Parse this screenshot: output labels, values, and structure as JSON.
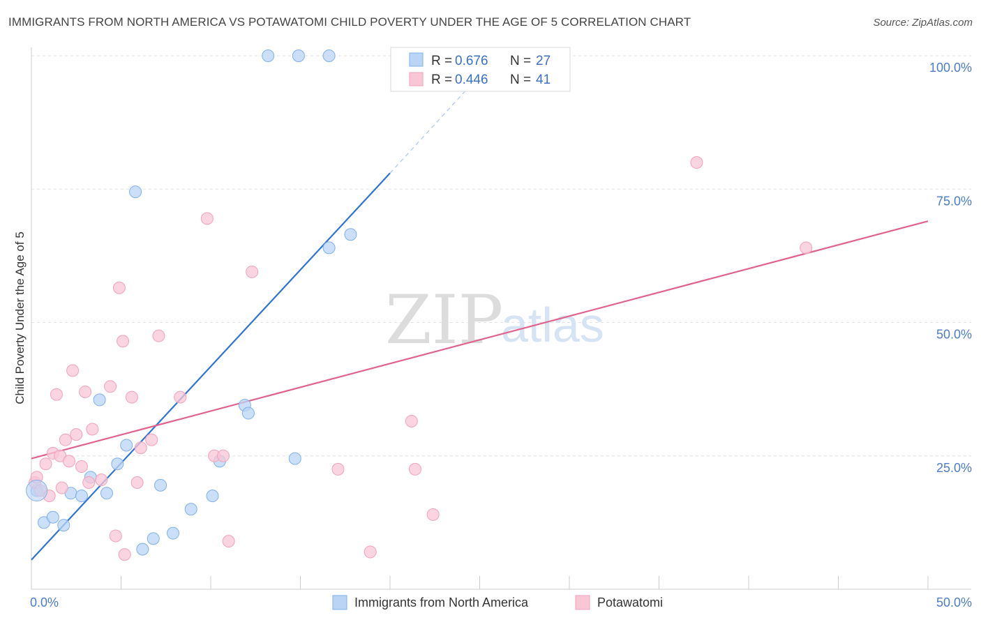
{
  "title": "IMMIGRANTS FROM NORTH AMERICA VS POTAWATOMI CHILD POVERTY UNDER THE AGE OF 5 CORRELATION CHART",
  "source": "Source: ZipAtlas.com",
  "watermark": {
    "zip": "ZIP",
    "atlas": "atlas"
  },
  "chart_data": {
    "type": "scatter",
    "xlabel": "",
    "ylabel": "Child Poverty Under the Age of 5",
    "xlim": [
      0,
      50
    ],
    "ylim": [
      0,
      100
    ],
    "x_tick_labels": [
      {
        "value": 0,
        "label": "0.0%"
      },
      {
        "value": 50,
        "label": "50.0%"
      }
    ],
    "y_tick_labels": [
      {
        "value": 25,
        "label": "25.0%"
      },
      {
        "value": 50,
        "label": "50.0%"
      },
      {
        "value": 75,
        "label": "75.0%"
      },
      {
        "value": 100,
        "label": "100.0%"
      }
    ],
    "grid": true,
    "legend": {
      "position": "top-center",
      "entries": [
        {
          "r_label": "R = ",
          "r_value": "0.676",
          "n_label": "N = ",
          "n_value": "27"
        },
        {
          "r_label": "R = ",
          "r_value": "0.446",
          "n_label": "N = ",
          "n_value": "41"
        }
      ]
    },
    "series": [
      {
        "name": "Immigrants from North America",
        "color": "#7fb0ea",
        "fill": "#b9d4f5",
        "line_color": "#2f73d4",
        "trend": {
          "x0": 0,
          "y0": 5.5,
          "x1": 20,
          "y1": 78,
          "dash_to_x": 26,
          "dash_to_y": 100
        },
        "points": [
          [
            0.3,
            18.5
          ],
          [
            0.7,
            12.5
          ],
          [
            1.2,
            13.5
          ],
          [
            1.8,
            12.0
          ],
          [
            2.2,
            18.0
          ],
          [
            2.8,
            17.5
          ],
          [
            3.3,
            21.0
          ],
          [
            3.8,
            35.5
          ],
          [
            4.2,
            18.0
          ],
          [
            4.8,
            23.5
          ],
          [
            5.3,
            27.0
          ],
          [
            5.8,
            74.5
          ],
          [
            6.2,
            7.5
          ],
          [
            6.8,
            9.5
          ],
          [
            7.2,
            19.5
          ],
          [
            7.9,
            10.5
          ],
          [
            8.9,
            15.0
          ],
          [
            10.1,
            17.5
          ],
          [
            10.5,
            24.0
          ],
          [
            11.9,
            34.5
          ],
          [
            12.1,
            33.0
          ],
          [
            13.2,
            100.0
          ],
          [
            14.9,
            100.0
          ],
          [
            16.6,
            100.0
          ],
          [
            14.7,
            24.5
          ],
          [
            16.6,
            64.0
          ],
          [
            17.8,
            66.5
          ]
        ]
      },
      {
        "name": "Potawatomi",
        "color": "#f0a3bb",
        "fill": "#f8c6d5",
        "line_color": "#e0628d",
        "trend": {
          "x0": 0,
          "y0": 24.5,
          "x1": 50,
          "y1": 69.0
        },
        "points": [
          [
            0.2,
            20.0
          ],
          [
            0.3,
            21.0
          ],
          [
            0.5,
            18.5
          ],
          [
            0.8,
            23.5
          ],
          [
            1.0,
            17.5
          ],
          [
            1.2,
            25.5
          ],
          [
            1.4,
            36.5
          ],
          [
            1.6,
            25.0
          ],
          [
            1.9,
            28.0
          ],
          [
            2.1,
            24.0
          ],
          [
            2.3,
            41.0
          ],
          [
            2.5,
            29.0
          ],
          [
            2.8,
            23.0
          ],
          [
            3.0,
            37.0
          ],
          [
            3.2,
            20.0
          ],
          [
            3.4,
            30.0
          ],
          [
            3.9,
            20.5
          ],
          [
            4.4,
            38.0
          ],
          [
            4.7,
            10.0
          ],
          [
            4.9,
            56.5
          ],
          [
            5.1,
            46.5
          ],
          [
            5.2,
            6.5
          ],
          [
            5.6,
            36.0
          ],
          [
            5.9,
            20.0
          ],
          [
            6.1,
            26.5
          ],
          [
            6.7,
            28.0
          ],
          [
            7.1,
            47.5
          ],
          [
            8.3,
            36.0
          ],
          [
            9.8,
            69.5
          ],
          [
            10.2,
            25.0
          ],
          [
            10.7,
            25.0
          ],
          [
            11.0,
            9.0
          ],
          [
            12.3,
            59.5
          ],
          [
            17.1,
            22.5
          ],
          [
            18.9,
            7.0
          ],
          [
            21.2,
            31.5
          ],
          [
            21.4,
            22.5
          ],
          [
            22.4,
            14.0
          ],
          [
            37.1,
            80.0
          ],
          [
            43.2,
            64.0
          ],
          [
            1.7,
            19.0
          ]
        ]
      }
    ]
  },
  "bottom_legend": [
    {
      "label": "Immigrants from North America"
    },
    {
      "label": "Potawatomi"
    }
  ]
}
